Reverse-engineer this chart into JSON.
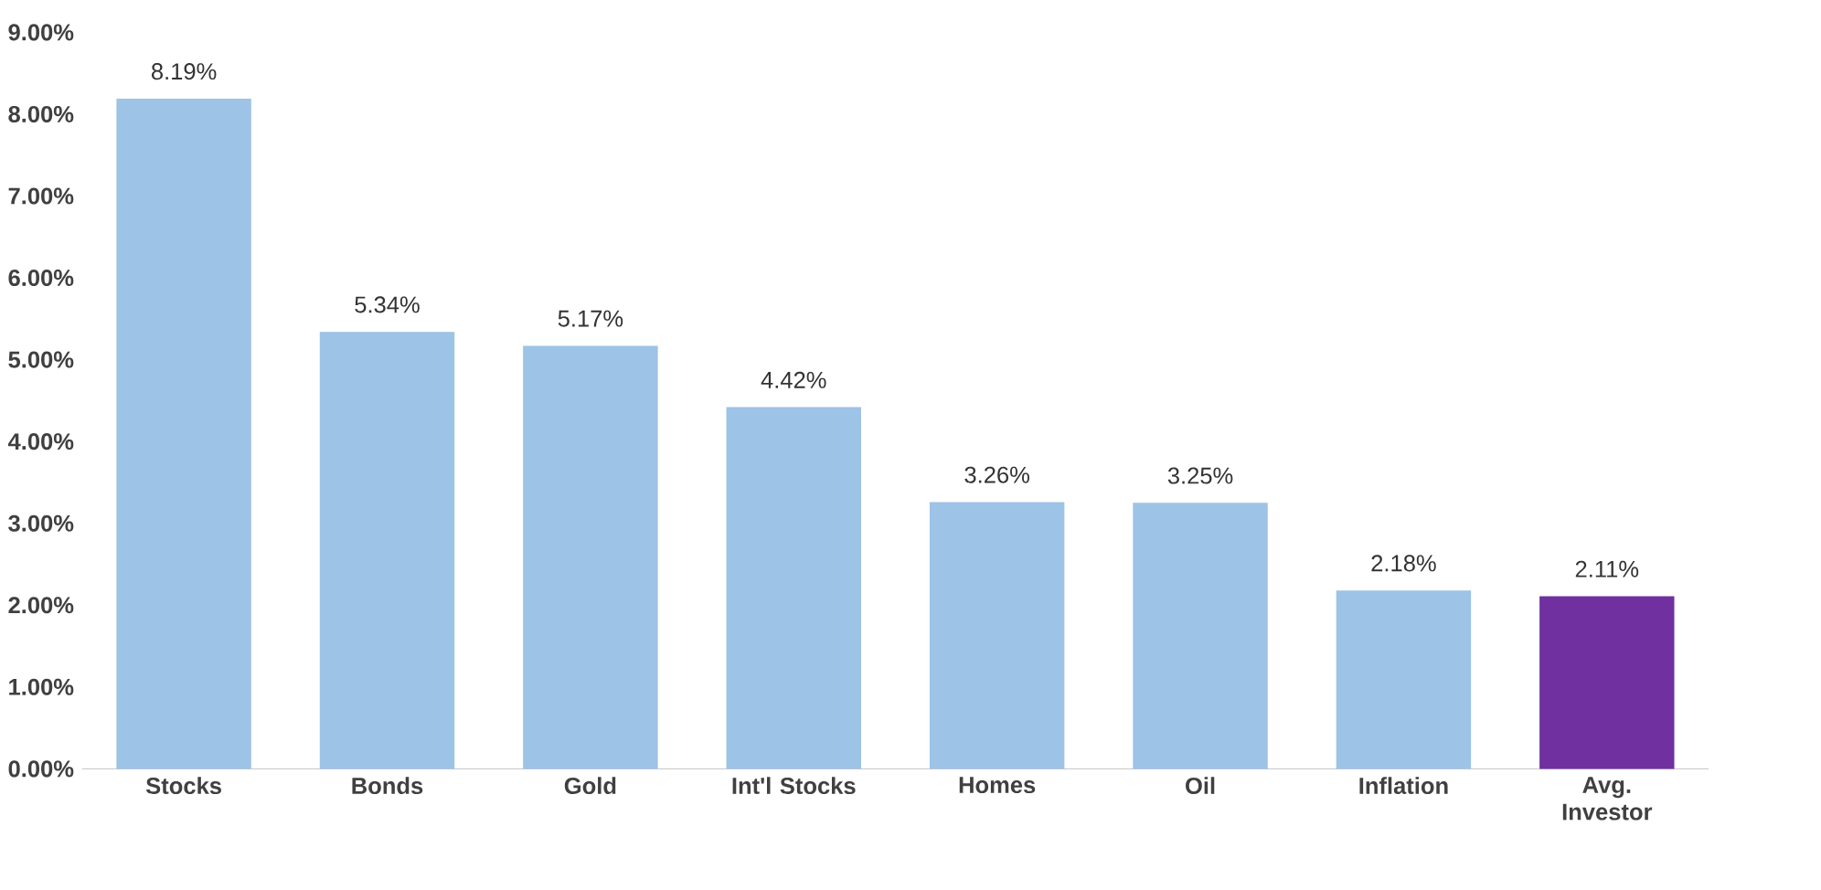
{
  "chart_data": {
    "type": "bar",
    "categories": [
      "Stocks",
      "Bonds",
      "Gold",
      "Int'l Stocks",
      "Homes",
      "Oil",
      "Inflation",
      "Avg. Investor"
    ],
    "values": [
      8.19,
      5.34,
      5.17,
      4.42,
      3.26,
      3.25,
      2.18,
      2.11
    ],
    "colors": [
      "#9dc3e6",
      "#9dc3e6",
      "#9dc3e6",
      "#9dc3e6",
      "#9dc3e6",
      "#9dc3e6",
      "#9dc3e6",
      "#7030a0"
    ],
    "value_labels": [
      "8.19%",
      "5.34%",
      "5.17%",
      "4.42%",
      "3.26%",
      "3.25%",
      "2.18%",
      "2.11%"
    ],
    "ylim": [
      0,
      9
    ],
    "yticks": [
      {
        "value": 0,
        "label": "0.00%"
      },
      {
        "value": 1,
        "label": "1.00%"
      },
      {
        "value": 2,
        "label": "2.00%"
      },
      {
        "value": 3,
        "label": "3.00%"
      },
      {
        "value": 4,
        "label": "4.00%"
      },
      {
        "value": 5,
        "label": "5.00%"
      },
      {
        "value": 6,
        "label": "6.00%"
      },
      {
        "value": 7,
        "label": "7.00%"
      },
      {
        "value": 8,
        "label": "8.00%"
      },
      {
        "value": 9,
        "label": "9.00%"
      }
    ]
  }
}
